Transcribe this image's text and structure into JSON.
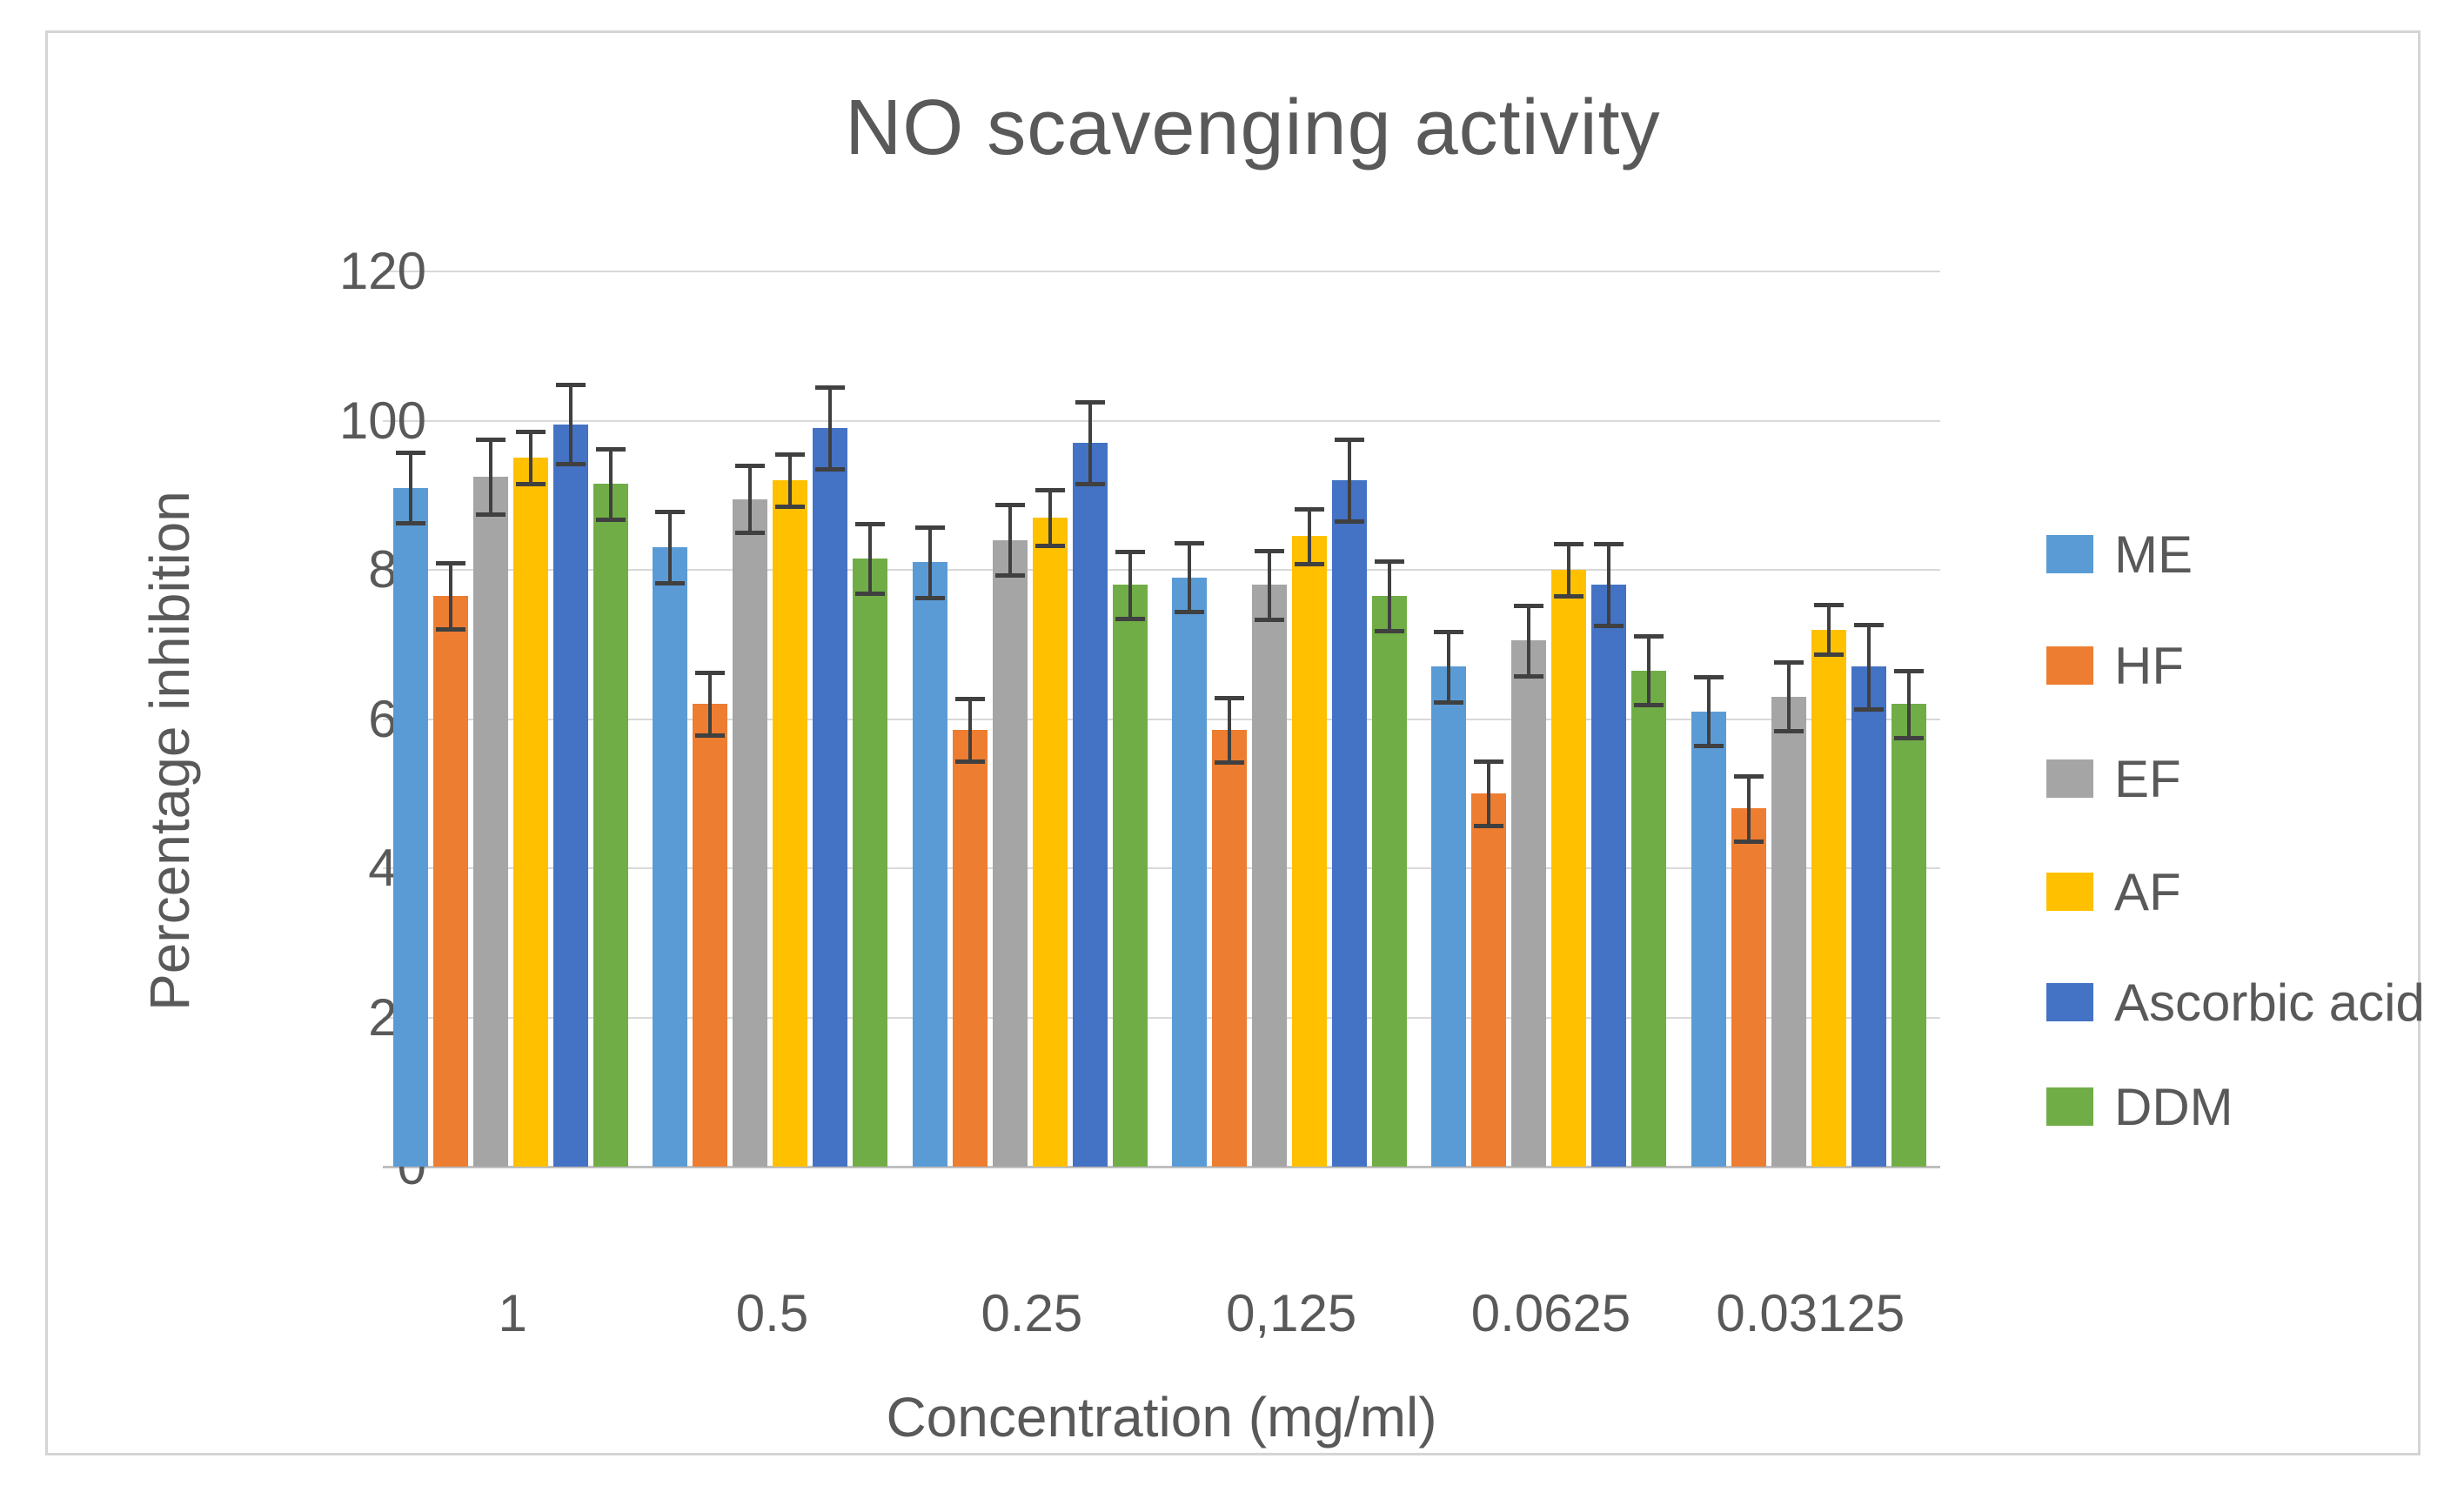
{
  "figure": {
    "border_color": "#d4d4d4",
    "background": "#ffffff"
  },
  "chart_data": {
    "type": "bar",
    "title": "NO scavenging activity",
    "xlabel": "Concentration (mg/ml)",
    "ylabel": "Percentage inhibition",
    "ylim": [
      0,
      120
    ],
    "yticks": [
      0,
      20,
      40,
      60,
      80,
      100,
      120
    ],
    "grid": true,
    "legend_position": "right",
    "error_bars": true,
    "categories": [
      "1",
      "0.5",
      "0.25",
      "0,125",
      "0.0625",
      "0.03125"
    ],
    "series": [
      {
        "name": "ME",
        "color": "#5B9BD5",
        "values": [
          91,
          83,
          81,
          79,
          67,
          61
        ],
        "errors": [
          4.7,
          4.8,
          4.7,
          4.6,
          4.7,
          4.6
        ]
      },
      {
        "name": "HF",
        "color": "#ED7D31",
        "values": [
          76.5,
          62,
          58.5,
          58.5,
          50,
          48
        ],
        "errors": [
          4.4,
          4.2,
          4.2,
          4.3,
          4.3,
          4.4
        ]
      },
      {
        "name": "EF",
        "color": "#A5A5A5",
        "values": [
          92.5,
          89.5,
          84,
          78,
          70.5,
          63
        ],
        "errors": [
          5.0,
          4.5,
          4.7,
          4.6,
          4.7,
          4.6
        ]
      },
      {
        "name": "AF",
        "color": "#FFC000",
        "values": [
          95,
          92,
          87,
          84.5,
          80,
          72
        ],
        "errors": [
          3.5,
          3.5,
          3.7,
          3.7,
          3.5,
          3.3
        ]
      },
      {
        "name": "Ascorbic acid",
        "color": "#4472C4",
        "values": [
          99.5,
          99,
          97,
          92,
          78,
          67
        ],
        "errors": [
          5.3,
          5.5,
          5.5,
          5.5,
          5.5,
          5.7
        ]
      },
      {
        "name": "DDM",
        "color": "#70AD47",
        "values": [
          91.5,
          81.5,
          78,
          76.5,
          66.5,
          62
        ],
        "errors": [
          4.7,
          4.7,
          4.5,
          4.7,
          4.6,
          4.5
        ]
      }
    ],
    "style": {
      "text_color": "#595959",
      "gridline_color": "#D9D9D9",
      "axis_line_color": "#BFBFBF",
      "error_bar_color": "#404040"
    }
  }
}
